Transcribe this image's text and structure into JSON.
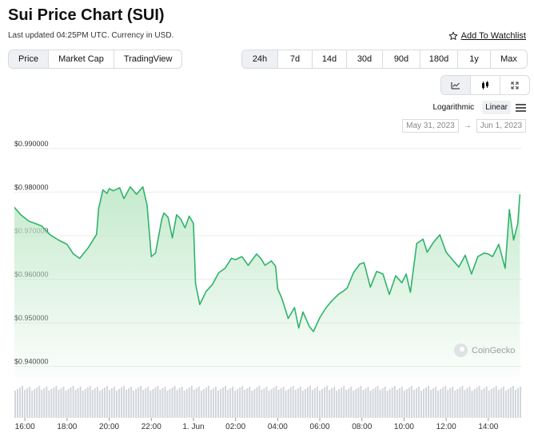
{
  "header": {
    "title": "Sui Price Chart (SUI)",
    "updated": "Last updated 04:25PM UTC. Currency in USD.",
    "watchlist": "Add To Watchlist"
  },
  "tabs": [
    {
      "label": "Price",
      "active": true
    },
    {
      "label": "Market Cap",
      "active": false
    },
    {
      "label": "TradingView",
      "active": false
    }
  ],
  "ranges": [
    {
      "label": "24h",
      "active": true
    },
    {
      "label": "7d"
    },
    {
      "label": "14d"
    },
    {
      "label": "30d"
    },
    {
      "label": "90d"
    },
    {
      "label": "180d"
    },
    {
      "label": "1y"
    },
    {
      "label": "Max"
    }
  ],
  "chart_types": [
    {
      "icon": "line-chart-icon",
      "active": false
    },
    {
      "icon": "candlestick-icon",
      "active": true
    },
    {
      "icon": "fullscreen-icon",
      "active": false
    }
  ],
  "scale": {
    "log": "Logarithmic",
    "linear": "Linear",
    "active": "Linear"
  },
  "date_range": {
    "from": "May 31, 2023",
    "to": "Jun 1, 2023",
    "separator": "→"
  },
  "watermark": "CoinGecko",
  "colors": {
    "line": "#2fb36b",
    "fill_top": "#bfe8c8",
    "volume": "#d2d6dc",
    "grid": "#ececec"
  },
  "chart_data": {
    "type": "area",
    "title": "",
    "xlabel": "",
    "ylabel": "",
    "x_ticks": [
      "16:00",
      "18:00",
      "20:00",
      "22:00",
      "1. Jun",
      "02:00",
      "04:00",
      "06:00",
      "08:00",
      "10:00",
      "12:00",
      "14:00"
    ],
    "x_tick_hours": [
      0,
      2,
      4,
      6,
      8,
      10,
      12,
      14,
      16,
      18,
      20,
      22
    ],
    "y_ticks": [
      "$0.990000",
      "$0.980000",
      "$0.970000",
      "$0.960000",
      "$0.950000",
      "$0.940000"
    ],
    "y_tick_values": [
      0.99,
      0.98,
      0.97,
      0.96,
      0.95,
      0.94
    ],
    "ylim": [
      0.937,
      0.992
    ],
    "xlim": [
      -0.5,
      23.6
    ],
    "grid": true,
    "volume_bars": true,
    "x": [
      -0.5,
      -0.2,
      0.2,
      0.5,
      0.8,
      1.2,
      1.6,
      2,
      2.3,
      2.6,
      3,
      3.4,
      3.5,
      3.7,
      3.9,
      4,
      4.2,
      4.5,
      4.7,
      5,
      5.3,
      5.6,
      5.8,
      6,
      6.2,
      6.5,
      6.6,
      6.8,
      7,
      7.2,
      7.4,
      7.6,
      7.8,
      8,
      8.1,
      8.3,
      8.6,
      8.9,
      9.2,
      9.5,
      9.8,
      10,
      10.3,
      10.6,
      11,
      11.2,
      11.4,
      11.7,
      11.9,
      12,
      12.2,
      12.5,
      12.8,
      13,
      13.2,
      13.5,
      13.7,
      14,
      14.3,
      14.6,
      14.9,
      15.1,
      15.3,
      15.6,
      15.9,
      16.1,
      16.4,
      16.7,
      17,
      17.3,
      17.6,
      17.9,
      18.1,
      18.3,
      18.6,
      18.9,
      19.1,
      19.4,
      19.7,
      20,
      20.3,
      20.6,
      20.9,
      21.2,
      21.5,
      21.8,
      22,
      22.2,
      22.5,
      22.8,
      23,
      23.2,
      23.4,
      23.5
    ],
    "y": [
      0.9765,
      0.9748,
      0.9733,
      0.9728,
      0.9722,
      0.9702,
      0.969,
      0.968,
      0.9658,
      0.9648,
      0.9672,
      0.9703,
      0.9762,
      0.9805,
      0.9797,
      0.9808,
      0.9803,
      0.981,
      0.9785,
      0.9812,
      0.9795,
      0.9812,
      0.977,
      0.9652,
      0.966,
      0.9738,
      0.9752,
      0.9742,
      0.9695,
      0.9748,
      0.9738,
      0.9718,
      0.9745,
      0.9728,
      0.959,
      0.9542,
      0.9572,
      0.9588,
      0.9615,
      0.9625,
      0.9648,
      0.9645,
      0.9652,
      0.9632,
      0.9658,
      0.9648,
      0.9632,
      0.9642,
      0.963,
      0.9578,
      0.9556,
      0.951,
      0.9535,
      0.9488,
      0.9525,
      0.9492,
      0.948,
      0.9512,
      0.9535,
      0.9552,
      0.9566,
      0.9572,
      0.958,
      0.9615,
      0.9635,
      0.9638,
      0.9582,
      0.9618,
      0.9612,
      0.9565,
      0.9608,
      0.9592,
      0.9612,
      0.957,
      0.9682,
      0.9692,
      0.9662,
      0.9685,
      0.9702,
      0.9662,
      0.9645,
      0.9628,
      0.9655,
      0.9612,
      0.9652,
      0.966,
      0.9658,
      0.9652,
      0.968,
      0.9625,
      0.976,
      0.969,
      0.9728,
      0.9795
    ]
  }
}
